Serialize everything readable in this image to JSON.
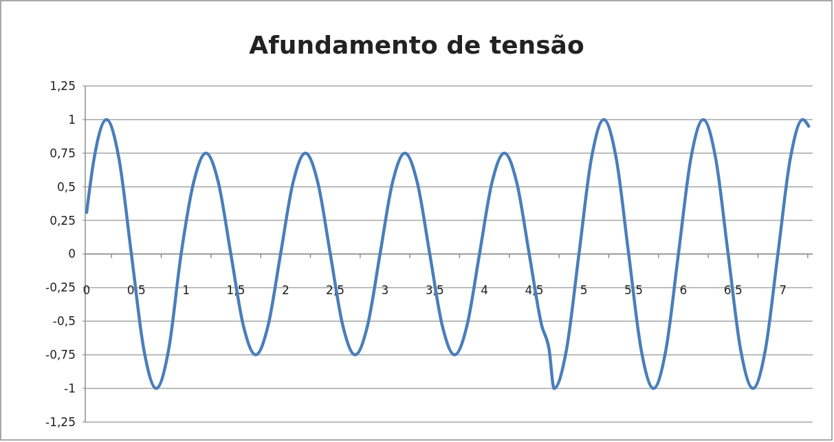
{
  "chart_data": {
    "type": "line",
    "title": "Afundamento de tensão",
    "x": [
      0,
      0.075,
      0.2,
      0.325,
      0.45,
      0.575,
      0.7,
      0.825,
      0.95,
      1.075,
      1.2,
      1.325,
      1.45,
      1.575,
      1.7,
      1.825,
      1.95,
      2.075,
      2.2,
      2.325,
      2.45,
      2.575,
      2.7,
      2.825,
      2.95,
      3.075,
      3.2,
      3.325,
      3.45,
      3.575,
      3.7,
      3.825,
      3.95,
      4.075,
      4.2,
      4.325,
      4.45,
      4.575,
      4.65,
      4.7,
      4.825,
      4.95,
      5.075,
      5.2,
      5.325,
      5.45,
      5.575,
      5.7,
      5.825,
      5.95,
      6.075,
      6.2,
      6.325,
      6.45,
      6.575,
      6.7,
      6.825,
      6.95,
      7.075,
      7.2,
      7.26
    ],
    "series": [
      {
        "color": "#4a7ebb",
        "values": [
          0.31,
          0.71,
          1,
          0.71,
          0,
          -0.71,
          -1,
          -0.71,
          0,
          0.53,
          0.75,
          0.53,
          0,
          -0.53,
          -0.75,
          -0.53,
          0,
          0.53,
          0.75,
          0.53,
          0,
          -0.53,
          -0.75,
          -0.53,
          0,
          0.53,
          0.75,
          0.53,
          0,
          -0.53,
          -0.75,
          -0.53,
          0,
          0.53,
          0.75,
          0.53,
          0,
          -0.53,
          -0.71,
          -1,
          -0.71,
          0,
          0.71,
          1,
          0.71,
          0,
          -0.71,
          -1,
          -0.71,
          0,
          0.71,
          1,
          0.71,
          0,
          -0.71,
          -1,
          -0.71,
          0,
          0.71,
          1,
          0.95
        ]
      }
    ],
    "xlim": [
      0,
      7.3
    ],
    "xticks": [
      {
        "value": 0,
        "label": "0"
      },
      {
        "value": 0.25,
        "label": null
      },
      {
        "value": 0.5,
        "label": "0,5"
      },
      {
        "value": 0.75,
        "label": null
      },
      {
        "value": 1,
        "label": "1"
      },
      {
        "value": 1.25,
        "label": null
      },
      {
        "value": 1.5,
        "label": "1,5"
      },
      {
        "value": 1.75,
        "label": null
      },
      {
        "value": 2,
        "label": "2"
      },
      {
        "value": 2.25,
        "label": null
      },
      {
        "value": 2.5,
        "label": "2,5"
      },
      {
        "value": 2.75,
        "label": null
      },
      {
        "value": 3,
        "label": "3"
      },
      {
        "value": 3.25,
        "label": null
      },
      {
        "value": 3.5,
        "label": "3,5"
      },
      {
        "value": 3.75,
        "label": null
      },
      {
        "value": 4,
        "label": "4"
      },
      {
        "value": 4.25,
        "label": null
      },
      {
        "value": 4.5,
        "label": "4,5"
      },
      {
        "value": 4.75,
        "label": null
      },
      {
        "value": 5,
        "label": "5"
      },
      {
        "value": 5.25,
        "label": null
      },
      {
        "value": 5.5,
        "label": "5,5"
      },
      {
        "value": 5.75,
        "label": null
      },
      {
        "value": 6,
        "label": "6"
      },
      {
        "value": 6.25,
        "label": null
      },
      {
        "value": 6.5,
        "label": "6,5"
      },
      {
        "value": 6.75,
        "label": null
      },
      {
        "value": 7,
        "label": "7"
      },
      {
        "value": 7.25,
        "label": null
      }
    ],
    "ylim": [
      -1.25,
      1.25
    ],
    "yticks": [
      {
        "value": -1.25,
        "label": "-1,25"
      },
      {
        "value": -1,
        "label": "-1"
      },
      {
        "value": -0.75,
        "label": "-0,75"
      },
      {
        "value": -0.5,
        "label": "-0,5"
      },
      {
        "value": -0.25,
        "label": "-0,25"
      },
      {
        "value": 0,
        "label": "0"
      },
      {
        "value": 0.25,
        "label": "0,25"
      },
      {
        "value": 0.5,
        "label": "0,5"
      },
      {
        "value": 0.75,
        "label": "0,75"
      },
      {
        "value": 1,
        "label": "1"
      },
      {
        "value": 1.25,
        "label": "1,25"
      }
    ],
    "grid": "y",
    "marker": "none",
    "line_style": "solid"
  }
}
